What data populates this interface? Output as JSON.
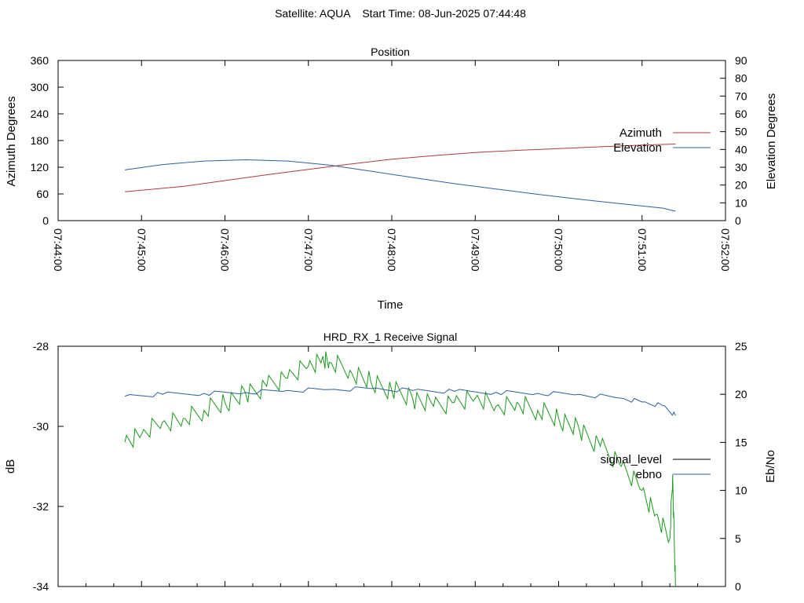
{
  "header": {
    "title": "Satellite: AQUA    Start Time: 08-Jun-2025 07:44:48"
  },
  "chart_data": [
    {
      "type": "line",
      "title": "Position",
      "xlabel": "Time",
      "ylabel": "Azimuth Degrees",
      "y2label": "Elevation Degrees",
      "x_ticks": [
        "07:44:00",
        "07:45:00",
        "07:46:00",
        "07:47:00",
        "07:48:00",
        "07:49:00",
        "07:50:00",
        "07:51:00",
        "07:52:00"
      ],
      "xlim": [
        "07:44:00",
        "07:52:00"
      ],
      "ylim": [
        0,
        360
      ],
      "y_ticks": [
        0,
        60,
        120,
        180,
        240,
        300,
        360
      ],
      "y2lim": [
        0,
        90
      ],
      "y2_ticks": [
        0,
        10,
        20,
        30,
        40,
        50,
        60,
        70,
        80,
        90
      ],
      "legend_position": "top-right",
      "grid": false,
      "series": [
        {
          "name": "Azimuth",
          "axis": "y",
          "color": "#b23a3a",
          "x": [
            "07:44:48",
            "07:45:30",
            "07:46:00",
            "07:46:30",
            "07:47:00",
            "07:47:30",
            "07:48:00",
            "07:48:30",
            "07:49:00",
            "07:49:30",
            "07:50:00",
            "07:50:30",
            "07:51:00",
            "07:51:24"
          ],
          "values": [
            65,
            77,
            90,
            103,
            115,
            127,
            138,
            146,
            153,
            158,
            162,
            166,
            170,
            172
          ]
        },
        {
          "name": "Elevation",
          "axis": "y2",
          "color": "#2b5fa0",
          "x": [
            "07:44:48",
            "07:45:15",
            "07:45:45",
            "07:46:15",
            "07:46:45",
            "07:47:15",
            "07:47:45",
            "07:48:15",
            "07:48:45",
            "07:49:15",
            "07:49:45",
            "07:50:15",
            "07:50:45",
            "07:51:15",
            "07:51:24"
          ],
          "values": [
            28.5,
            31.5,
            33.5,
            34.2,
            33.5,
            31.2,
            27.8,
            24.2,
            20.8,
            17.8,
            14.8,
            12.0,
            9.5,
            7.0,
            5.3
          ]
        }
      ]
    },
    {
      "type": "line",
      "title": "HRD_RX_1 Receive Signal",
      "ylabel": "dB",
      "y2label": "Eb/No",
      "ylim": [
        -34,
        -28
      ],
      "y_ticks": [
        -34,
        -32,
        -30,
        -28
      ],
      "y2lim": [
        0,
        25
      ],
      "y2_ticks": [
        0,
        5,
        10,
        15,
        20,
        25
      ],
      "xlim": [
        "07:44:00",
        "07:52:00"
      ],
      "x_ticks": [
        "07:44:00",
        "07:45:00",
        "07:46:00",
        "07:47:00",
        "07:48:00",
        "07:49:00",
        "07:50:00",
        "07:51:00",
        "07:52:00"
      ],
      "legend_position": "right",
      "grid": false,
      "series": [
        {
          "name": "signal_level",
          "axis": "y",
          "color": "#1a9a1a",
          "x": [
            "07:44:48",
            "07:45:00",
            "07:45:15",
            "07:45:30",
            "07:45:45",
            "07:46:00",
            "07:46:15",
            "07:46:30",
            "07:46:45",
            "07:47:00",
            "07:47:10",
            "07:47:15",
            "07:47:30",
            "07:47:45",
            "07:48:00",
            "07:48:15",
            "07:48:30",
            "07:48:45",
            "07:49:00",
            "07:49:15",
            "07:49:30",
            "07:49:45",
            "07:50:00",
            "07:50:15",
            "07:50:30",
            "07:50:45",
            "07:51:00",
            "07:51:10",
            "07:51:20",
            "07:51:22",
            "07:51:24"
          ],
          "values": [
            -30.4,
            -30.2,
            -29.9,
            -29.8,
            -29.6,
            -29.4,
            -29.2,
            -29.0,
            -28.8,
            -28.5,
            -28.3,
            -28.4,
            -28.6,
            -28.9,
            -29.1,
            -29.3,
            -29.5,
            -29.4,
            -29.3,
            -29.5,
            -29.4,
            -29.6,
            -29.8,
            -30.1,
            -30.5,
            -31.0,
            -31.6,
            -32.2,
            -32.8,
            -31.2,
            -34.0
          ]
        },
        {
          "name": "ebno",
          "axis": "y2",
          "color": "#2b5fa0",
          "x": [
            "07:44:48",
            "07:45:15",
            "07:45:45",
            "07:46:15",
            "07:46:45",
            "07:47:15",
            "07:47:45",
            "07:48:15",
            "07:48:45",
            "07:49:15",
            "07:49:45",
            "07:50:15",
            "07:50:45",
            "07:51:00",
            "07:51:15",
            "07:51:24"
          ],
          "values": [
            19.8,
            20.0,
            20.1,
            20.2,
            20.4,
            20.5,
            20.6,
            20.4,
            20.3,
            20.2,
            20.1,
            20.0,
            19.6,
            19.2,
            18.8,
            17.8
          ]
        }
      ]
    }
  ]
}
